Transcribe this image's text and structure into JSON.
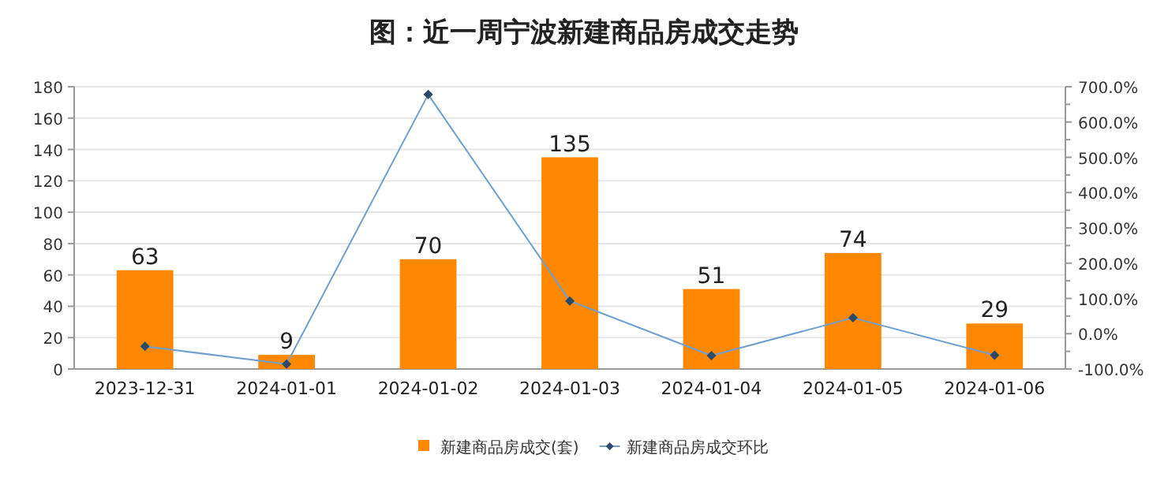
{
  "chart_data": {
    "type": "bar",
    "title": "图：近一周宁波新建商品房成交走势",
    "categories": [
      "2023-12-31",
      "2024-01-01",
      "2024-01-02",
      "2024-01-03",
      "2024-01-04",
      "2024-01-05",
      "2024-01-06"
    ],
    "series": [
      {
        "name": "新建商品房成交(套)",
        "color": "#ff8800",
        "values": [
          63,
          9,
          70,
          135,
          51,
          74,
          29
        ],
        "data_labels": true
      },
      {
        "name": "新建商品房成交环比",
        "type": "line",
        "axis": "y2",
        "color": "#6f9fd0",
        "marker": "diamond",
        "values": [
          -36,
          -86,
          678,
          93,
          -62,
          45,
          -61
        ]
      }
    ],
    "ylim": [
      0,
      180
    ],
    "yticks": [
      0,
      20,
      40,
      60,
      80,
      100,
      120,
      140,
      160,
      180
    ],
    "y2lim": [
      -100,
      700
    ],
    "y2ticks": [
      {
        "value": -100,
        "label": "-100.0%"
      },
      {
        "value": 0,
        "label": "0.0%"
      },
      {
        "value": 100,
        "label": "100.0%"
      },
      {
        "value": 200,
        "label": "200.0%"
      },
      {
        "value": 300,
        "label": "300.0%"
      },
      {
        "value": 400,
        "label": "400.0%"
      },
      {
        "value": 500,
        "label": "500.0%"
      },
      {
        "value": 600,
        "label": "600.0%"
      },
      {
        "value": 700,
        "label": "700.0%"
      }
    ],
    "grid": "y",
    "legend": "bottom"
  }
}
